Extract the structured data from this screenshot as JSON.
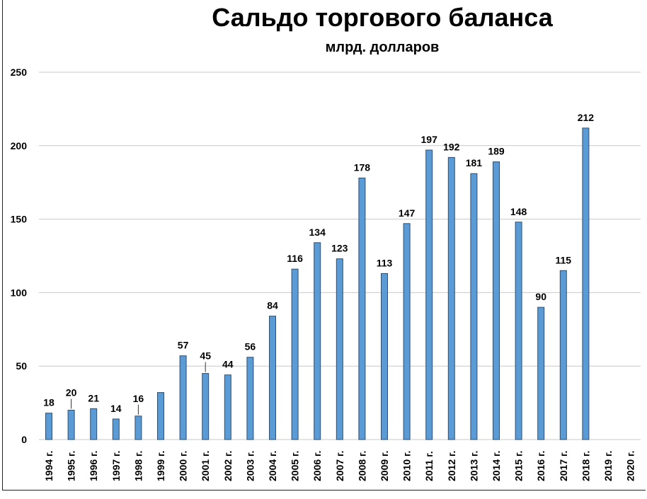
{
  "chart_data": {
    "type": "bar",
    "title": "Сальдо торгового баланса",
    "subtitle": "млрд. долларов",
    "xlabel": "",
    "ylabel": "",
    "ylim": [
      0,
      250
    ],
    "yticks": [
      0,
      50,
      100,
      150,
      200,
      250
    ],
    "grid": true,
    "categories": [
      "1994 г.",
      "1995 г.",
      "1996 г.",
      "1997 г.",
      "1998 г.",
      "1999 г.",
      "2000 г.",
      "2001 г.",
      "2002 г.",
      "2003 г.",
      "2004 г.",
      "2005 г.",
      "2006 г.",
      "2007 г.",
      "2008 г.",
      "2009 г.",
      "2010 г.",
      "2011 г.",
      "2012 г.",
      "2013 г.",
      "2014 г.",
      "2015 г.",
      "2016 г.",
      "2017 г.",
      "2018 г.",
      "2019 г.",
      "2020 г."
    ],
    "values": [
      18,
      20,
      21,
      14,
      16,
      32,
      57,
      45,
      44,
      56,
      84,
      116,
      134,
      123,
      178,
      113,
      147,
      197,
      192,
      181,
      189,
      148,
      90,
      115,
      212,
      null,
      null
    ],
    "data_labels": [
      "18",
      "20",
      "21",
      "14",
      "16",
      "",
      "57",
      "45",
      "44",
      "56",
      "84",
      "116",
      "134",
      "123",
      "178",
      "113",
      "147",
      "197",
      "192",
      "181",
      "189",
      "148",
      "90",
      "115",
      "212",
      "",
      ""
    ],
    "colors": {
      "bar": "#5b9bd5",
      "bar_border": "#2f4f6f",
      "grid": "#c8c8c8"
    }
  }
}
